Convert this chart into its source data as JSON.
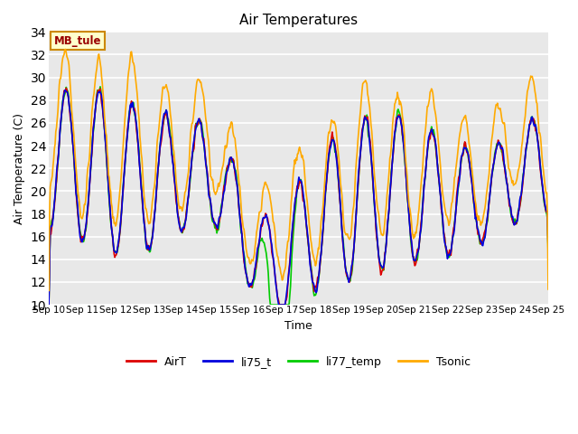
{
  "title": "Air Temperatures",
  "xlabel": "Time",
  "ylabel": "Air Temperature (C)",
  "ylim": [
    10,
    34
  ],
  "yticks": [
    10,
    12,
    14,
    16,
    18,
    20,
    22,
    24,
    26,
    28,
    30,
    32,
    34
  ],
  "x_labels": [
    "Sep 10",
    "Sep 11",
    "Sep 12",
    "Sep 13",
    "Sep 14",
    "Sep 15",
    "Sep 16",
    "Sep 17",
    "Sep 18",
    "Sep 19",
    "Sep 20",
    "Sep 21",
    "Sep 22",
    "Sep 23",
    "Sep 24",
    "Sep 25"
  ],
  "legend_labels": [
    "AirT",
    "li75_t",
    "li77_temp",
    "Tsonic"
  ],
  "line_colors": [
    "#dd0000",
    "#0000dd",
    "#00cc00",
    "#ffaa00"
  ],
  "annotation_text": "MB_tule",
  "annotation_color": "#990000",
  "annotation_bg": "#ffffcc",
  "annotation_border": "#cc8800",
  "background_color": "#e8e8e8",
  "grid_color": "#ffffff",
  "fig_bg": "#ffffff"
}
